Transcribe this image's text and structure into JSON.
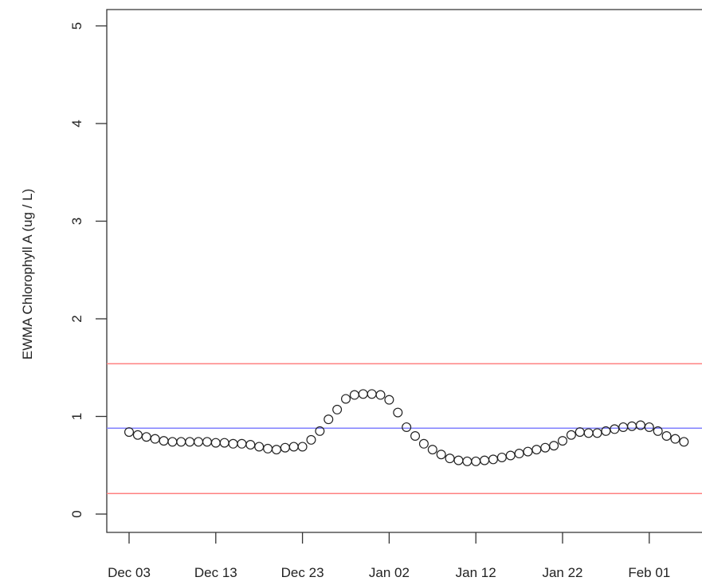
{
  "chart_data": {
    "type": "scatter",
    "title": "",
    "xlabel": "",
    "ylabel": "EWMA Chlorophyll A (ug / L)",
    "ylim": [
      0,
      5
    ],
    "y_ticks": [
      0,
      1,
      2,
      3,
      4,
      5
    ],
    "y_tick_labels": [
      "0",
      "1",
      "2",
      "3",
      "4",
      "5"
    ],
    "x_tick_labels": [
      "Dec 03",
      "Dec 13",
      "Dec 23",
      "Jan 02",
      "Jan 12",
      "Jan 22",
      "Feb 01"
    ],
    "x_tick_day_index": [
      0,
      10,
      20,
      30,
      40,
      50,
      60
    ],
    "x_start_label": "Dec 03",
    "x_day_range": [
      -1.5,
      65.5
    ],
    "grid": false,
    "marker": "open-circle",
    "center_line": {
      "value": 0.88,
      "color": "#8080ff"
    },
    "control_limits": {
      "upper": 1.54,
      "lower": 0.21,
      "color": "#ff8080"
    },
    "series": [
      {
        "values": [
          0.84,
          0.81,
          0.79,
          0.77,
          0.75,
          0.74,
          0.74,
          0.74,
          0.74,
          0.74,
          0.73,
          0.73,
          0.72,
          0.72,
          0.71,
          0.69,
          0.67,
          0.66,
          0.68,
          0.69,
          0.69,
          0.76,
          0.85,
          0.97,
          1.07,
          1.18,
          1.22,
          1.23,
          1.23,
          1.22,
          1.17,
          1.04,
          0.89,
          0.8,
          0.72,
          0.66,
          0.61,
          0.57,
          0.55,
          0.54,
          0.54,
          0.55,
          0.56,
          0.58,
          0.6,
          0.62,
          0.64,
          0.66,
          0.68,
          0.7,
          0.75,
          0.81,
          0.84,
          0.83,
          0.83,
          0.85,
          0.87,
          0.89,
          0.9,
          0.91,
          0.89,
          0.85,
          0.8,
          0.77,
          0.74
        ]
      }
    ]
  }
}
